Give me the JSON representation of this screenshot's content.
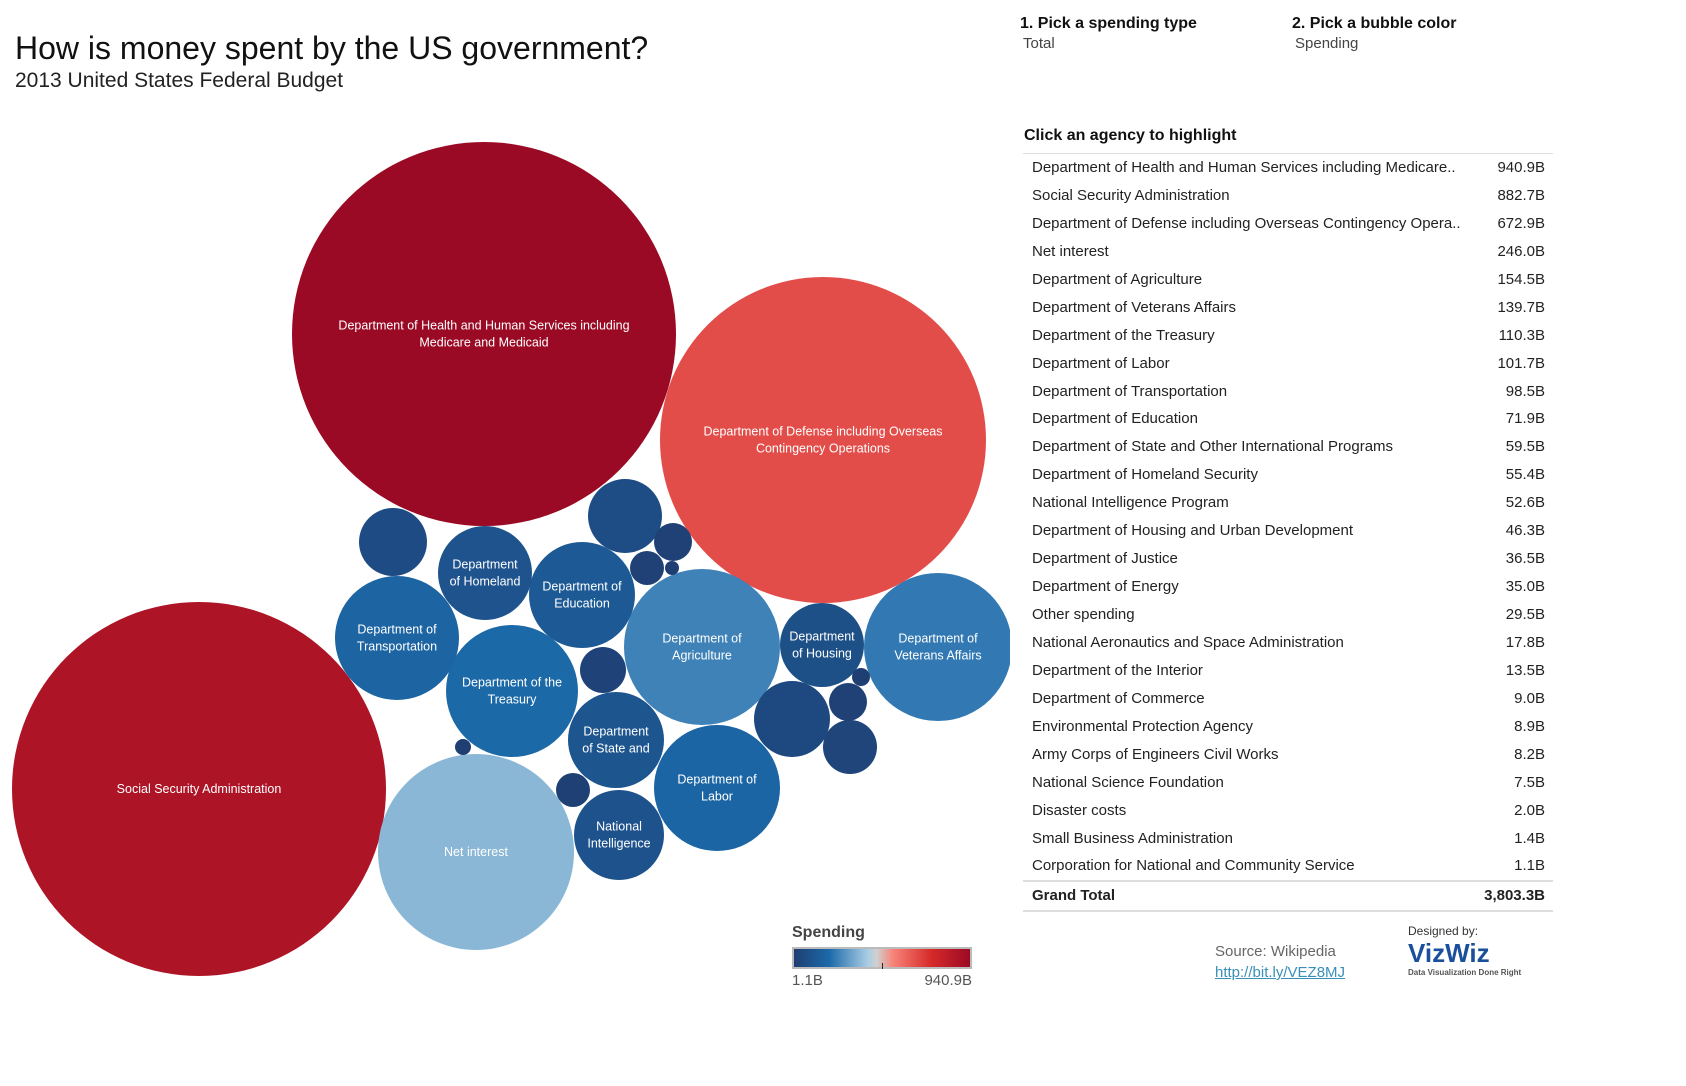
{
  "header": {
    "title": "How is money spent by the US government?",
    "subtitle": "2013 United States Federal Budget"
  },
  "controls": [
    {
      "label": "1. Pick a spending type",
      "value": "Total"
    },
    {
      "label": "2. Pick a bubble color",
      "value": "Spending"
    }
  ],
  "table": {
    "title": "Click an agency to highlight",
    "rows": [
      {
        "name": "Department of Health and Human Services including Medicare..",
        "value": "940.9B"
      },
      {
        "name": "Social Security Administration",
        "value": "882.7B"
      },
      {
        "name": "Department of Defense including Overseas Contingency Opera..",
        "value": "672.9B"
      },
      {
        "name": "Net interest",
        "value": "246.0B"
      },
      {
        "name": "Department of Agriculture",
        "value": "154.5B"
      },
      {
        "name": "Department of Veterans Affairs",
        "value": "139.7B"
      },
      {
        "name": "Department of the Treasury",
        "value": "110.3B"
      },
      {
        "name": "Department of Labor",
        "value": "101.7B"
      },
      {
        "name": "Department of Transportation",
        "value": "98.5B"
      },
      {
        "name": "Department of Education",
        "value": "71.9B"
      },
      {
        "name": "Department of State and Other International Programs",
        "value": "59.5B"
      },
      {
        "name": "Department of Homeland Security",
        "value": "55.4B"
      },
      {
        "name": "National Intelligence Program",
        "value": "52.6B"
      },
      {
        "name": "Department of Housing and Urban Development",
        "value": "46.3B"
      },
      {
        "name": "Department of Justice",
        "value": "36.5B"
      },
      {
        "name": "Department of Energy",
        "value": "35.0B"
      },
      {
        "name": "Other spending",
        "value": "29.5B"
      },
      {
        "name": "National Aeronautics and Space Administration",
        "value": "17.8B"
      },
      {
        "name": "Department of the Interior",
        "value": "13.5B"
      },
      {
        "name": "Department of Commerce",
        "value": "9.0B"
      },
      {
        "name": "Environmental Protection Agency",
        "value": "8.9B"
      },
      {
        "name": "Army Corps of Engineers Civil Works",
        "value": "8.2B"
      },
      {
        "name": "National Science Foundation",
        "value": "7.5B"
      },
      {
        "name": "Disaster costs",
        "value": "2.0B"
      },
      {
        "name": "Small Business Administration",
        "value": "1.4B"
      },
      {
        "name": "Corporation for National and Community Service",
        "value": "1.1B"
      }
    ],
    "total_label": "Grand Total",
    "total_value": "3,803.3B"
  },
  "chart_data": {
    "type": "bubble",
    "size_field": "Total",
    "color_field": "Spending",
    "unit": "B",
    "bubbles": [
      {
        "label": [
          "Department of Health and Human Services including",
          "Medicare and Medicaid"
        ],
        "value": 940.9
      },
      {
        "label": [
          "Social Security Administration"
        ],
        "value": 882.7
      },
      {
        "label": [
          "Department of Defense including Overseas",
          "Contingency Operations"
        ],
        "value": 672.9
      },
      {
        "label": [
          "Net interest"
        ],
        "value": 246.0
      },
      {
        "label": [
          "Department of",
          "Agriculture"
        ],
        "value": 154.5
      },
      {
        "label": [
          "Department of",
          "Veterans Affairs"
        ],
        "value": 139.7
      },
      {
        "label": [
          "Department of the",
          "Treasury"
        ],
        "value": 110.3
      },
      {
        "label": [
          "Department of",
          "Labor"
        ],
        "value": 101.7
      },
      {
        "label": [
          "Department of",
          "Transportation"
        ],
        "value": 98.5
      },
      {
        "label": [
          "Department of",
          "Education"
        ],
        "value": 71.9
      },
      {
        "label": [
          "Department",
          "of State and"
        ],
        "value": 59.5
      },
      {
        "label": [
          "Department",
          "of Homeland"
        ],
        "value": 55.4
      },
      {
        "label": [
          "National",
          "Intelligence"
        ],
        "value": 52.6
      },
      {
        "label": [
          "Department",
          "of Housing"
        ],
        "value": 46.3
      },
      {
        "label": [],
        "value": 36.5
      },
      {
        "label": [],
        "value": 35.0
      },
      {
        "label": [],
        "value": 29.5
      },
      {
        "label": [],
        "value": 17.8
      },
      {
        "label": [],
        "value": 13.5
      },
      {
        "label": [],
        "value": 9.0
      },
      {
        "label": [],
        "value": 8.9
      },
      {
        "label": [],
        "value": 8.2
      },
      {
        "label": [],
        "value": 7.5
      },
      {
        "label": [],
        "value": 2.0
      },
      {
        "label": [],
        "value": 1.4
      },
      {
        "label": [],
        "value": 1.1
      }
    ],
    "color_scale": {
      "title": "Spending",
      "min_label": "1.1B",
      "max_label": "940.9B",
      "min": 1.1,
      "max": 940.9,
      "colors": [
        "#1f3e72",
        "#1c6aaa",
        "#aacde4",
        "#d0d0d0",
        "#f7857a",
        "#d62a2a",
        "#9b0a24"
      ]
    }
  },
  "footer": {
    "source": "Source: Wikipedia",
    "link": "http://bit.ly/VEZ8MJ",
    "logo_top": "Designed by:",
    "logo": "VizWiz",
    "logo_tag": "Data Visualization Done Right"
  }
}
